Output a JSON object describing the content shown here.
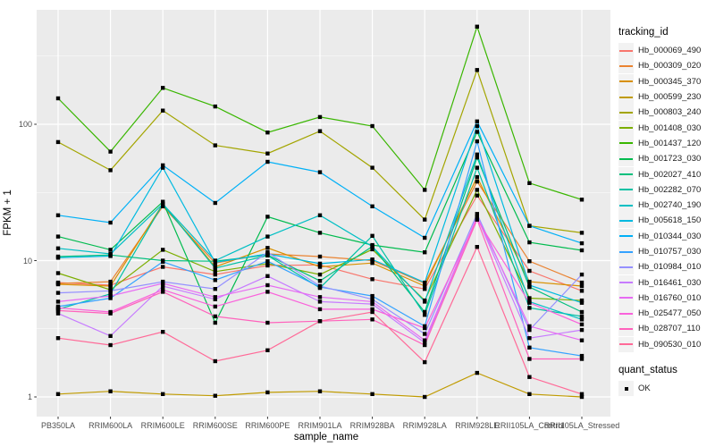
{
  "figure": {
    "y_axis": {
      "label": "FPKM + 1",
      "ticks": [
        {
          "label": "100",
          "value": 100
        },
        {
          "label": "10",
          "value": 10
        },
        {
          "label": "1",
          "value": 1
        }
      ]
    },
    "x_axis": {
      "label": "sample_name"
    },
    "legend": {
      "tracking_title": "tracking_id",
      "quant_title": "quant_status",
      "quant_items": [
        {
          "label": "OK",
          "marker": "black-square-icon"
        }
      ]
    },
    "colors": {
      "panel_bg": "#EBEBEB",
      "grid": "#FFFFFF",
      "tick_text": "#4D4D4D",
      "axis_title_text": "#000000",
      "legend_key_bg": "#F2F2F2",
      "marker": "#000000"
    }
  },
  "chart_data": {
    "type": "line",
    "title": "",
    "xlabel": "sample_name",
    "ylabel": "FPKM + 1",
    "y_scale": "log10",
    "ylim": [
      0.68,
      760
    ],
    "yticks": [
      1,
      10,
      100
    ],
    "minor_gridlines": [
      3.162,
      31.62,
      316.2
    ],
    "grid": true,
    "legend_position": "right",
    "marker": "filled-black-square",
    "marker_legend": "quant_status OK",
    "categories": [
      "PB350LA",
      "RRIM600LA",
      "RRIM600LE",
      "RRIM600SE",
      "RRIM600PE",
      "RRIM901LA",
      "RRIM928BA",
      "RRIM928LA",
      "RRIM928LE",
      "RRII105LA_Control",
      "RRII105LA_Stressed"
    ],
    "series": [
      {
        "name": "Hb_000069_490",
        "color": "#F8766D",
        "values": [
          6.9,
          6.6,
          9.0,
          7.9,
          9.2,
          9.3,
          7.3,
          6.2,
          30,
          8.4,
          6.0
        ]
      },
      {
        "name": "Hb_000309_020",
        "color": "#EA8331",
        "values": [
          6.8,
          7.0,
          25,
          9.6,
          11.2,
          10.7,
          10.0,
          6.8,
          38,
          9.9,
          6.9
        ]
      },
      {
        "name": "Hb_000345_370",
        "color": "#D89000",
        "values": [
          6.7,
          6.5,
          26,
          9.0,
          12.4,
          9.0,
          9.6,
          6.5,
          41,
          7.0,
          6.5
        ]
      },
      {
        "name": "Hb_000599_230",
        "color": "#C09B00",
        "values": [
          1.05,
          1.1,
          1.05,
          1.02,
          1.08,
          1.1,
          1.05,
          1.0,
          1.5,
          1.05,
          1.0
        ]
      },
      {
        "name": "Hb_000803_240",
        "color": "#A3A500",
        "values": [
          74,
          46,
          126,
          70,
          61,
          89,
          48,
          20,
          250,
          18,
          16
        ]
      },
      {
        "name": "Hb_001408_030",
        "color": "#7CAE00",
        "values": [
          8.1,
          6.1,
          12,
          8.3,
          9.5,
          7.9,
          12.1,
          5.1,
          33,
          5.3,
          5.1
        ]
      },
      {
        "name": "Hb_001437_120",
        "color": "#39B600",
        "values": [
          155,
          63,
          185,
          135,
          87,
          113,
          97,
          33,
          520,
          37,
          28
        ]
      },
      {
        "name": "Hb_001723_030",
        "color": "#00BB4E",
        "values": [
          15,
          12,
          27,
          3.5,
          21,
          16,
          13,
          11.5,
          88,
          13.6,
          11.9
        ]
      },
      {
        "name": "Hb_002027_410",
        "color": "#00BF7D",
        "values": [
          10.7,
          11,
          10,
          9.9,
          11,
          7.1,
          12.7,
          4.2,
          57,
          6.4,
          4.2
        ]
      },
      {
        "name": "Hb_002282_070",
        "color": "#00C1A3",
        "values": [
          4.4,
          5.7,
          26,
          8.8,
          10.9,
          6.3,
          15.2,
          4.0,
          48,
          4.5,
          3.9
        ]
      },
      {
        "name": "Hb_002740_190",
        "color": "#00BFC4",
        "values": [
          12.3,
          11.2,
          26,
          10,
          15,
          21.5,
          12.7,
          5.0,
          60,
          5.0,
          3.7
        ]
      },
      {
        "name": "Hb_005618_150",
        "color": "#00BAE0",
        "values": [
          10.5,
          10.8,
          48,
          9.7,
          11.2,
          9.5,
          10.2,
          6.9,
          97,
          6.6,
          4.9
        ]
      },
      {
        "name": "Hb_010344_030",
        "color": "#00B0F6",
        "values": [
          21.5,
          19,
          50,
          26.5,
          53,
          44.5,
          25,
          14.7,
          105,
          18,
          13.4
        ]
      },
      {
        "name": "Hb_010757_030",
        "color": "#35A2FF",
        "values": [
          4.6,
          5.3,
          9.8,
          7.2,
          9.9,
          6.4,
          5.5,
          3.3,
          75,
          2.3,
          2.0
        ]
      },
      {
        "name": "Hb_010984_010",
        "color": "#9590FF",
        "values": [
          5.8,
          6.0,
          7.0,
          6.2,
          11.5,
          6.5,
          5.2,
          2.9,
          22,
          3.1,
          7.9
        ]
      },
      {
        "name": "Hb_016461_030",
        "color": "#C77CFF",
        "values": [
          4.1,
          2.8,
          6.5,
          5.2,
          7.7,
          5.0,
          4.8,
          2.5,
          21,
          2.7,
          3.1
        ]
      },
      {
        "name": "Hb_016760_010",
        "color": "#E76BF3",
        "values": [
          5.0,
          5.5,
          6.8,
          5.4,
          6.6,
          5.4,
          5.0,
          2.6,
          21,
          3.3,
          2.6
        ]
      },
      {
        "name": "Hb_025477_050",
        "color": "#FA62DB",
        "values": [
          4.5,
          4.2,
          6.1,
          4.6,
          5.9,
          4.4,
          4.4,
          3.2,
          20,
          4.9,
          3.4
        ]
      },
      {
        "name": "Hb_028707_110",
        "color": "#FF62BC",
        "values": [
          4.3,
          4.1,
          5.9,
          3.9,
          3.5,
          3.6,
          3.7,
          2.4,
          20,
          1.9,
          1.9
        ]
      },
      {
        "name": "Hb_090530_010",
        "color": "#FF6A98",
        "values": [
          2.7,
          2.4,
          3.0,
          1.83,
          2.2,
          3.6,
          4.2,
          1.8,
          12.6,
          1.4,
          1.05
        ]
      }
    ]
  }
}
